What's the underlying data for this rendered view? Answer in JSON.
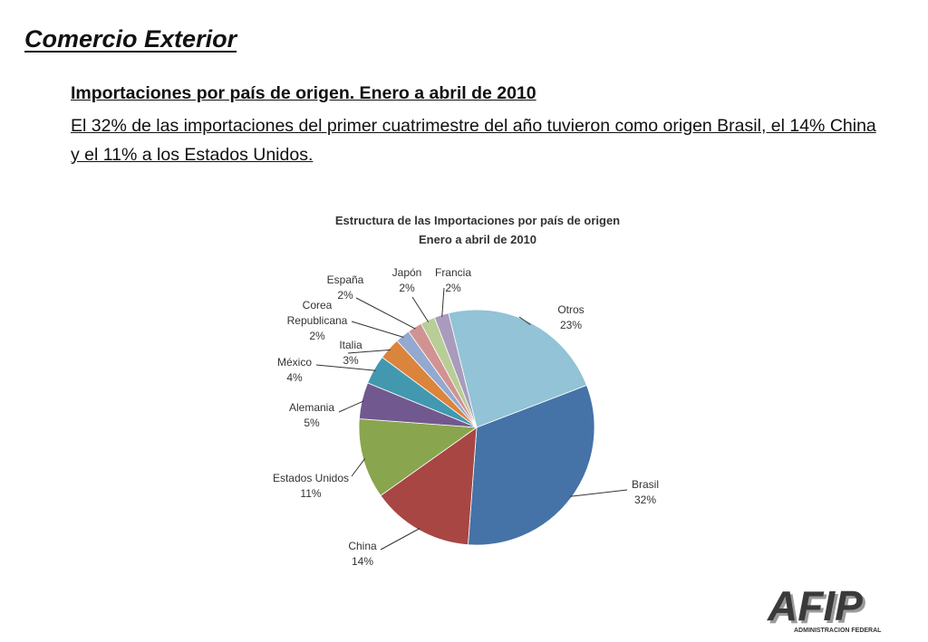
{
  "header": {
    "title": "Comercio Exterior",
    "subtitle": "Importaciones por país de origen. Enero a abril de 2010",
    "body": "El 32% de las importaciones del primer cuatrimestre del año tuvieron como origen Brasil, el 14% China y el 11% a los Estados Unidos."
  },
  "chart_data": {
    "type": "pie",
    "title": [
      "Estructura de las Importaciones por país de origen",
      "Enero a abril de 2010"
    ],
    "slices": [
      {
        "name": "Brasil",
        "label": [
          "Brasil",
          "32%"
        ],
        "value": 32,
        "color": "#4573A7"
      },
      {
        "name": "China",
        "label": [
          "China",
          "14%"
        ],
        "value": 14,
        "color": "#A84643"
      },
      {
        "name": "Estados Unidos",
        "label": [
          "Estados Unidos",
          "11%"
        ],
        "value": 11,
        "color": "#89A54E"
      },
      {
        "name": "Alemania",
        "label": [
          "Alemania",
          "5%"
        ],
        "value": 5,
        "color": "#71588F"
      },
      {
        "name": "México",
        "label": [
          "México",
          "4%"
        ],
        "value": 4,
        "color": "#4198AF"
      },
      {
        "name": "Italia",
        "label": [
          "Italia",
          "3%"
        ],
        "value": 3,
        "color": "#DB843D"
      },
      {
        "name": "Corea Republicana",
        "label": [
          "Corea",
          "Republicana",
          "2%"
        ],
        "value": 2,
        "color": "#93A9CF"
      },
      {
        "name": "España",
        "label": [
          "España",
          "2%"
        ],
        "value": 2,
        "color": "#D19392"
      },
      {
        "name": "Japón",
        "label": [
          "Japón",
          "2%"
        ],
        "value": 2,
        "color": "#B9CD96"
      },
      {
        "name": "Francia",
        "label": [
          "Francia",
          "2%"
        ],
        "value": 2,
        "color": "#A99BBD"
      },
      {
        "name": "Otros",
        "label": [
          "Otros",
          "23%"
        ],
        "value": 23,
        "color": "#92C3D6"
      }
    ]
  },
  "logo": {
    "text": "AFIP",
    "caption": "ADMINISTRACION FEDERAL",
    "color": "#3a3a3a"
  }
}
